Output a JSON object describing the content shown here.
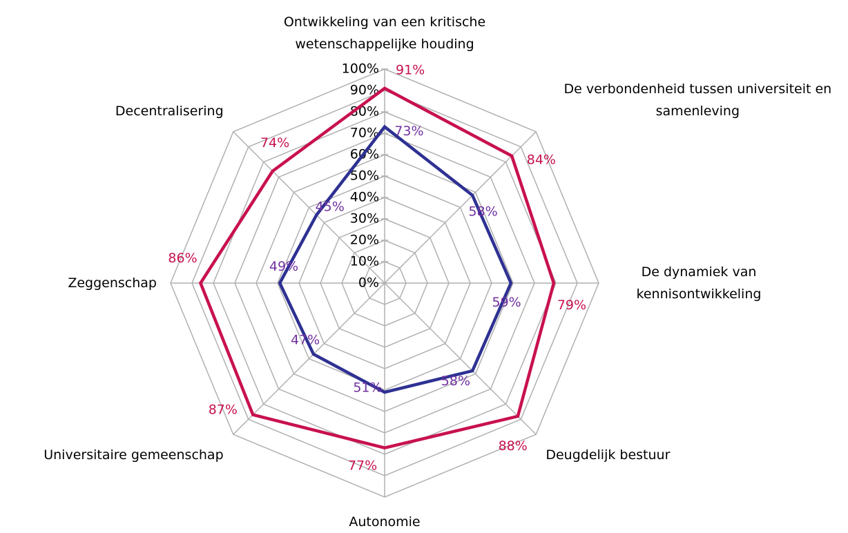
{
  "chart_data": {
    "type": "radar",
    "categories": [
      "Ontwikkeling van een kritische wetenschappelijke houding",
      "De verbondenheid tussen universiteit en samenleving",
      "De dynamiek van kennisontwikkeling",
      "Deugdelijk bestuur",
      "Autonomie",
      "Universitaire gemeenschap",
      "Zeggenschap",
      "Decentralisering"
    ],
    "series": [
      {
        "color": "#c8114f",
        "label_color": "#c8114f",
        "values": [
          91,
          84,
          79,
          88,
          77,
          87,
          86,
          74
        ],
        "value_labels": [
          "91%",
          "84%",
          "79%",
          "88%",
          "77%",
          "87%",
          "86%",
          "74%"
        ]
      },
      {
        "color": "#2e3192",
        "label_color": "#7030a0",
        "values": [
          73,
          58,
          59,
          58,
          51,
          47,
          49,
          45
        ],
        "value_labels": [
          "73%",
          "58%",
          "59%",
          "58%",
          "51%",
          "47%",
          "49%",
          "45%"
        ]
      }
    ],
    "ylim": [
      0,
      100
    ],
    "yticks": [
      {
        "value": 0,
        "label": "0%"
      },
      {
        "value": 10,
        "label": "10%"
      },
      {
        "value": 20,
        "label": "20%"
      },
      {
        "value": 30,
        "label": "30%"
      },
      {
        "value": 40,
        "label": "40%"
      },
      {
        "value": 50,
        "label": "50%"
      },
      {
        "value": 60,
        "label": "60%"
      },
      {
        "value": 70,
        "label": "70%"
      },
      {
        "value": 80,
        "label": "80%"
      },
      {
        "value": 90,
        "label": "90%"
      },
      {
        "value": 100,
        "label": "100%"
      }
    ],
    "grid": true
  }
}
